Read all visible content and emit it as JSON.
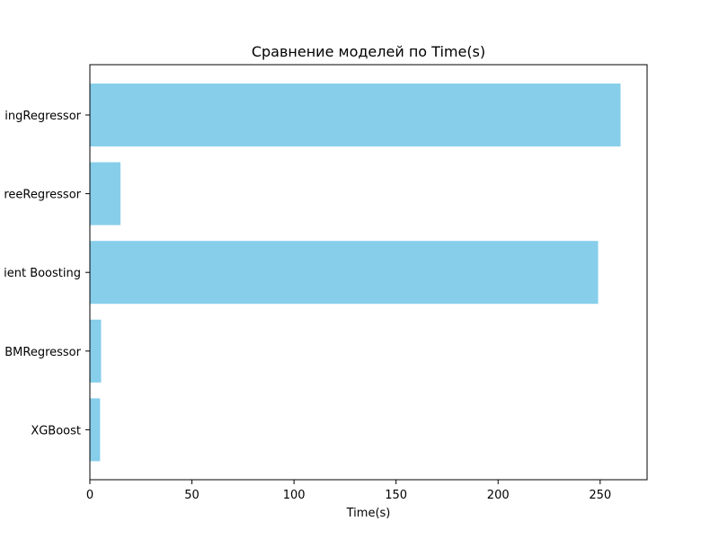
{
  "chart_data": {
    "type": "bar",
    "orientation": "horizontal",
    "title": "Сравнение моделей по Time(s)",
    "xlabel": "Time(s)",
    "ylabel": "",
    "categories": [
      "ingRegressor",
      "reeRegressor",
      "ient Boosting",
      "BMRegressor",
      "XGBoost"
    ],
    "values": [
      260,
      15,
      249,
      5.5,
      5
    ],
    "xlim": [
      0,
      273
    ],
    "x_ticks": [
      0,
      50,
      100,
      150,
      200,
      250
    ],
    "bar_color": "#87ceeb",
    "grid": false,
    "legend": "none"
  }
}
